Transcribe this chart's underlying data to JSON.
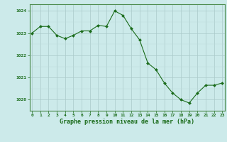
{
  "x": [
    0,
    1,
    2,
    3,
    4,
    5,
    6,
    7,
    8,
    9,
    10,
    11,
    12,
    13,
    14,
    15,
    16,
    17,
    18,
    19,
    20,
    21,
    22,
    23
  ],
  "y": [
    1023.0,
    1023.3,
    1023.3,
    1022.9,
    1022.75,
    1022.9,
    1023.1,
    1023.1,
    1023.35,
    1023.3,
    1024.0,
    1023.8,
    1023.2,
    1022.7,
    1021.65,
    1021.35,
    1020.75,
    1020.3,
    1020.0,
    1019.85,
    1020.3,
    1020.65,
    1020.65,
    1020.75
  ],
  "line_color": "#1a6b1a",
  "marker_color": "#1a6b1a",
  "bg_color": "#cceaea",
  "grid_color_major": "#aacaca",
  "grid_color_minor": "#bbdada",
  "xlabel": "Graphe pression niveau de la mer (hPa)",
  "xlabel_color": "#1a6b1a",
  "tick_color": "#1a6b1a",
  "spine_color": "#4a8a4a",
  "ylim": [
    1019.5,
    1024.3
  ],
  "yticks": [
    1020,
    1021,
    1022,
    1023,
    1024
  ],
  "xticks": [
    0,
    1,
    2,
    3,
    4,
    5,
    6,
    7,
    8,
    9,
    10,
    11,
    12,
    13,
    14,
    15,
    16,
    17,
    18,
    19,
    20,
    21,
    22,
    23
  ],
  "xlim": [
    -0.3,
    23.3
  ]
}
